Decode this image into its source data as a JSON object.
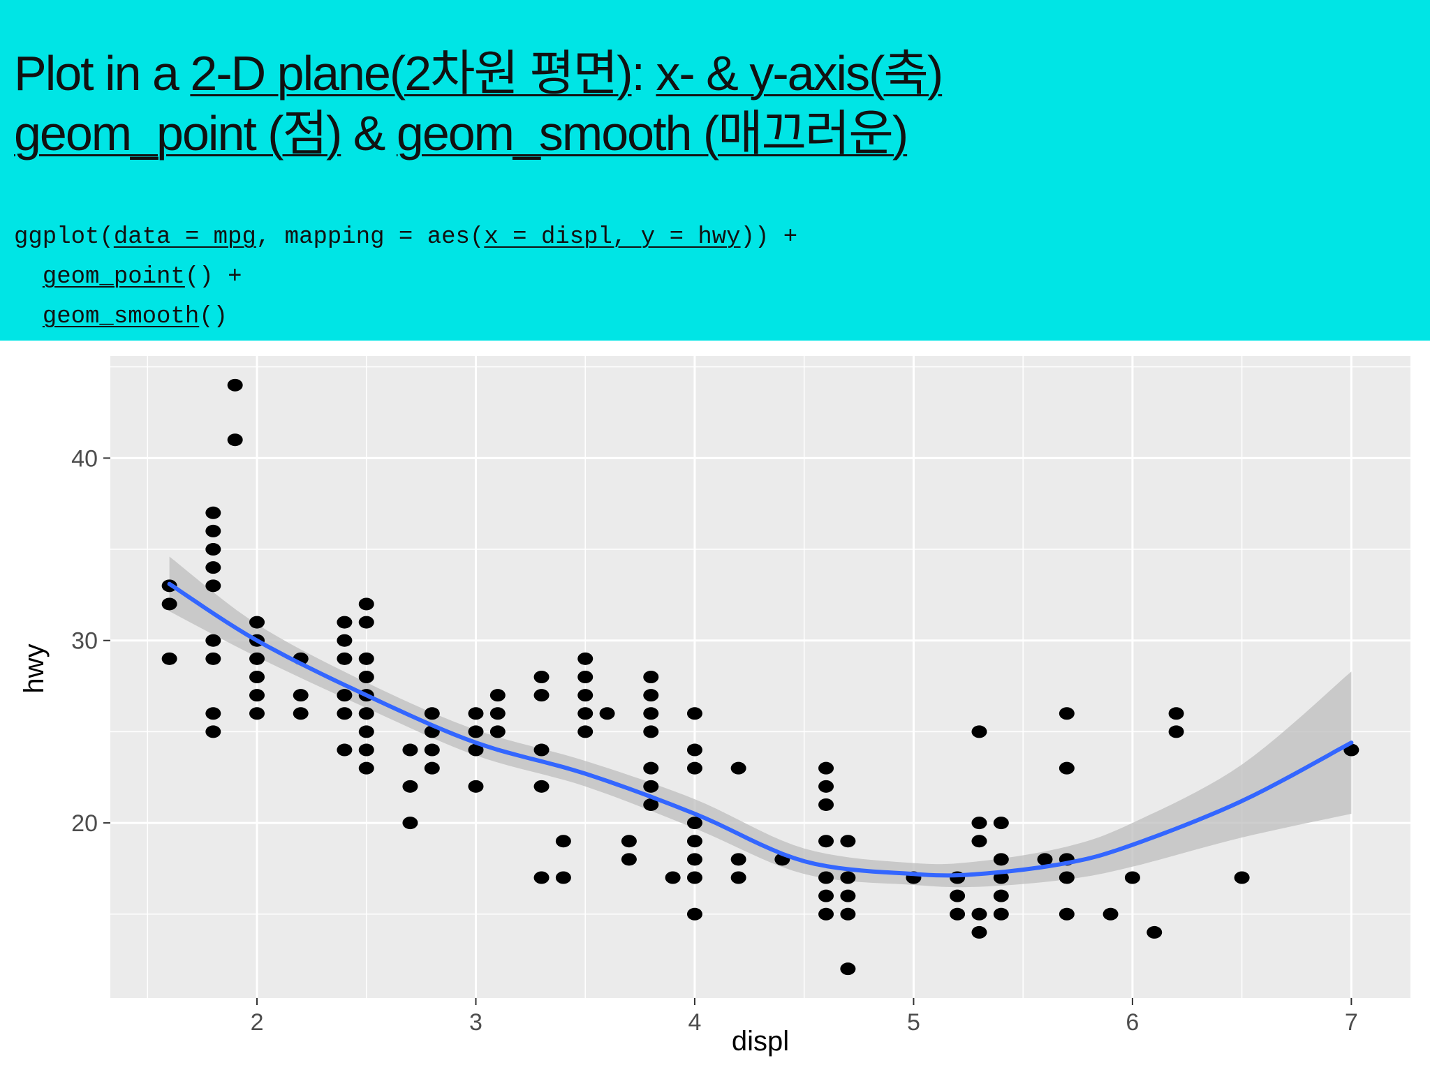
{
  "slide": {
    "title_line1": {
      "prefix": "Plot in a ",
      "link1": "2-D plane(2차원 평면)",
      "sep": ": ",
      "link2": "x- & y-axis(축)"
    },
    "title_line2": {
      "link1": "geom_point (점)",
      "sep": " & ",
      "link2": "geom_smooth (매끄러운)"
    },
    "code": {
      "l1_a": "ggplot(",
      "l1_b": "data = mpg",
      "l1_c": ", mapping = aes(",
      "l1_d": "x = displ, y = hwy",
      "l1_e": ")) +",
      "l2_a": "  ",
      "l2_b": "geom_point",
      "l2_c": "() +",
      "l3_a": "  ",
      "l3_b": "geom_smooth",
      "l3_c": "()"
    },
    "colors": {
      "header_bg": "#00e5e5",
      "panel_bg": "#ebebeb",
      "smooth_line": "#3366ff",
      "ribbon": "#bdbdbd"
    }
  },
  "chart_data": {
    "type": "scatter",
    "xlabel": "displ",
    "ylabel": "hwy",
    "xlim": [
      1.33,
      7.27
    ],
    "ylim": [
      10.4,
      45.6
    ],
    "x_ticks": [
      2,
      3,
      4,
      5,
      6,
      7
    ],
    "y_ticks": [
      20,
      30,
      40
    ],
    "grid": true,
    "points": [
      [
        1.6,
        33
      ],
      [
        1.6,
        32
      ],
      [
        1.6,
        29
      ],
      [
        1.8,
        37
      ],
      [
        1.8,
        36
      ],
      [
        1.8,
        35
      ],
      [
        1.8,
        34
      ],
      [
        1.8,
        33
      ],
      [
        1.8,
        30
      ],
      [
        1.8,
        29
      ],
      [
        1.8,
        26
      ],
      [
        1.8,
        25
      ],
      [
        1.9,
        44
      ],
      [
        1.9,
        41
      ],
      [
        2.0,
        31
      ],
      [
        2.0,
        30
      ],
      [
        2.0,
        29
      ],
      [
        2.0,
        28
      ],
      [
        2.0,
        27
      ],
      [
        2.0,
        26
      ],
      [
        2.2,
        29
      ],
      [
        2.2,
        27
      ],
      [
        2.2,
        26
      ],
      [
        2.4,
        31
      ],
      [
        2.4,
        30
      ],
      [
        2.4,
        29
      ],
      [
        2.4,
        27
      ],
      [
        2.4,
        26
      ],
      [
        2.4,
        24
      ],
      [
        2.5,
        32
      ],
      [
        2.5,
        31
      ],
      [
        2.5,
        29
      ],
      [
        2.5,
        28
      ],
      [
        2.5,
        27
      ],
      [
        2.5,
        26
      ],
      [
        2.5,
        25
      ],
      [
        2.5,
        24
      ],
      [
        2.5,
        23
      ],
      [
        2.7,
        24
      ],
      [
        2.7,
        22
      ],
      [
        2.7,
        20
      ],
      [
        2.8,
        26
      ],
      [
        2.8,
        25
      ],
      [
        2.8,
        24
      ],
      [
        2.8,
        23
      ],
      [
        3.0,
        26
      ],
      [
        3.0,
        25
      ],
      [
        3.0,
        24
      ],
      [
        3.0,
        22
      ],
      [
        3.1,
        27
      ],
      [
        3.1,
        26
      ],
      [
        3.1,
        25
      ],
      [
        3.3,
        28
      ],
      [
        3.3,
        27
      ],
      [
        3.3,
        24
      ],
      [
        3.3,
        22
      ],
      [
        3.3,
        17
      ],
      [
        3.4,
        19
      ],
      [
        3.4,
        17
      ],
      [
        3.5,
        29
      ],
      [
        3.5,
        28
      ],
      [
        3.5,
        27
      ],
      [
        3.5,
        26
      ],
      [
        3.5,
        25
      ],
      [
        3.6,
        26
      ],
      [
        3.7,
        19
      ],
      [
        3.7,
        18
      ],
      [
        3.8,
        28
      ],
      [
        3.8,
        27
      ],
      [
        3.8,
        26
      ],
      [
        3.8,
        25
      ],
      [
        3.8,
        23
      ],
      [
        3.8,
        22
      ],
      [
        3.8,
        21
      ],
      [
        3.9,
        17
      ],
      [
        4.0,
        26
      ],
      [
        4.0,
        24
      ],
      [
        4.0,
        23
      ],
      [
        4.0,
        20
      ],
      [
        4.0,
        19
      ],
      [
        4.0,
        18
      ],
      [
        4.0,
        17
      ],
      [
        4.0,
        15
      ],
      [
        4.2,
        23
      ],
      [
        4.2,
        18
      ],
      [
        4.2,
        17
      ],
      [
        4.4,
        18
      ],
      [
        4.6,
        23
      ],
      [
        4.6,
        22
      ],
      [
        4.6,
        21
      ],
      [
        4.6,
        19
      ],
      [
        4.6,
        17
      ],
      [
        4.6,
        16
      ],
      [
        4.6,
        15
      ],
      [
        4.7,
        19
      ],
      [
        4.7,
        17
      ],
      [
        4.7,
        16
      ],
      [
        4.7,
        15
      ],
      [
        4.7,
        12
      ],
      [
        5.0,
        17
      ],
      [
        5.2,
        17
      ],
      [
        5.2,
        16
      ],
      [
        5.2,
        15
      ],
      [
        5.3,
        25
      ],
      [
        5.3,
        20
      ],
      [
        5.3,
        19
      ],
      [
        5.3,
        15
      ],
      [
        5.3,
        14
      ],
      [
        5.4,
        20
      ],
      [
        5.4,
        18
      ],
      [
        5.4,
        17
      ],
      [
        5.4,
        16
      ],
      [
        5.4,
        15
      ],
      [
        5.6,
        18
      ],
      [
        5.7,
        26
      ],
      [
        5.7,
        23
      ],
      [
        5.7,
        18
      ],
      [
        5.7,
        17
      ],
      [
        5.7,
        15
      ],
      [
        5.9,
        15
      ],
      [
        6.0,
        17
      ],
      [
        6.1,
        14
      ],
      [
        6.2,
        26
      ],
      [
        6.2,
        25
      ],
      [
        6.5,
        17
      ],
      [
        7.0,
        24
      ]
    ],
    "smooth": {
      "method": "loess",
      "x": [
        1.6,
        2.0,
        2.5,
        3.0,
        3.5,
        4.0,
        4.5,
        5.0,
        5.3,
        5.7,
        6.0,
        6.5,
        7.0
      ],
      "y": [
        33.1,
        30.0,
        27.0,
        24.4,
        22.7,
        20.5,
        17.9,
        17.2,
        17.2,
        17.8,
        18.8,
        21.2,
        24.4
      ],
      "lower": [
        31.6,
        29.1,
        26.3,
        23.7,
        22.0,
        19.7,
        17.2,
        16.6,
        16.5,
        16.9,
        17.6,
        19.2,
        20.5
      ],
      "upper": [
        34.6,
        30.9,
        27.7,
        25.1,
        23.4,
        21.3,
        18.6,
        17.8,
        17.9,
        18.7,
        20.0,
        23.2,
        28.3
      ]
    }
  }
}
